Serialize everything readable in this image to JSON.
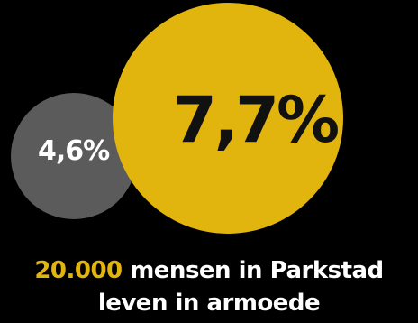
{
  "graphic": {
    "small_circle": {
      "value_label": "4,6%",
      "value": 4.6,
      "color": "#5b5b5b"
    },
    "large_circle": {
      "value_label": "7,7%",
      "value": 7.7,
      "color": "#e1b50d"
    }
  },
  "caption": {
    "highlight": "20.000",
    "line1_rest": " mensen in Parkstad",
    "line2": "leven in armoede"
  }
}
